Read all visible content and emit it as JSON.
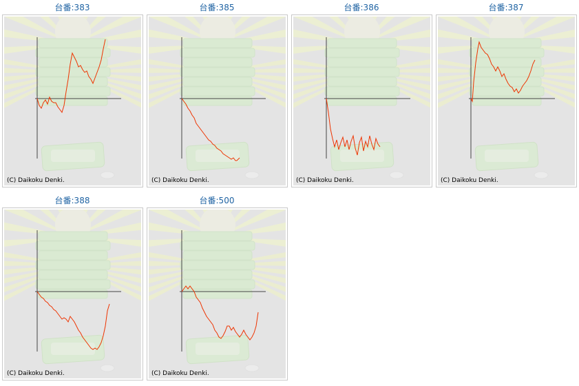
{
  "copyright": "(C) Daikoku Denki.",
  "colors": {
    "title": "#1f63a3",
    "line": "#ee3300",
    "axis": "#444444",
    "panel_bg": "#e4e4e4"
  },
  "machines": [
    {
      "title": "台番:383",
      "points": [
        [
          0,
          0
        ],
        [
          3,
          -10
        ],
        [
          6,
          -14
        ],
        [
          9,
          -6
        ],
        [
          12,
          -2
        ],
        [
          15,
          -8
        ],
        [
          18,
          2
        ],
        [
          21,
          -4
        ],
        [
          24,
          -6
        ],
        [
          27,
          -6
        ],
        [
          30,
          -12
        ],
        [
          33,
          -16
        ],
        [
          36,
          -20
        ],
        [
          39,
          -10
        ],
        [
          42,
          10
        ],
        [
          45,
          28
        ],
        [
          48,
          50
        ],
        [
          51,
          66
        ],
        [
          54,
          60
        ],
        [
          57,
          54
        ],
        [
          60,
          46
        ],
        [
          63,
          48
        ],
        [
          66,
          42
        ],
        [
          69,
          38
        ],
        [
          72,
          40
        ],
        [
          75,
          32
        ],
        [
          78,
          28
        ],
        [
          81,
          22
        ],
        [
          84,
          30
        ],
        [
          87,
          38
        ],
        [
          90,
          46
        ],
        [
          93,
          56
        ],
        [
          96,
          72
        ],
        [
          99,
          86
        ]
      ]
    },
    {
      "title": "台番:385",
      "points": [
        [
          0,
          0
        ],
        [
          3,
          -4
        ],
        [
          6,
          -8
        ],
        [
          9,
          -14
        ],
        [
          12,
          -18
        ],
        [
          15,
          -24
        ],
        [
          18,
          -28
        ],
        [
          21,
          -36
        ],
        [
          24,
          -40
        ],
        [
          27,
          -44
        ],
        [
          30,
          -48
        ],
        [
          33,
          -52
        ],
        [
          36,
          -56
        ],
        [
          39,
          -60
        ],
        [
          42,
          -62
        ],
        [
          45,
          -66
        ],
        [
          48,
          -68
        ],
        [
          51,
          -72
        ],
        [
          54,
          -74
        ],
        [
          57,
          -76
        ],
        [
          60,
          -80
        ],
        [
          63,
          -82
        ],
        [
          66,
          -84
        ],
        [
          69,
          -86
        ],
        [
          72,
          -88
        ],
        [
          75,
          -86
        ],
        [
          78,
          -90
        ],
        [
          80,
          -90
        ],
        [
          84,
          -86
        ]
      ]
    },
    {
      "title": "台番:386",
      "points": [
        [
          0,
          0
        ],
        [
          3,
          -20
        ],
        [
          6,
          -44
        ],
        [
          9,
          -58
        ],
        [
          12,
          -70
        ],
        [
          15,
          -60
        ],
        [
          18,
          -74
        ],
        [
          21,
          -64
        ],
        [
          24,
          -56
        ],
        [
          27,
          -70
        ],
        [
          30,
          -60
        ],
        [
          33,
          -74
        ],
        [
          36,
          -62
        ],
        [
          39,
          -54
        ],
        [
          42,
          -72
        ],
        [
          45,
          -82
        ],
        [
          48,
          -64
        ],
        [
          51,
          -56
        ],
        [
          54,
          -76
        ],
        [
          57,
          -62
        ],
        [
          60,
          -70
        ],
        [
          63,
          -54
        ],
        [
          66,
          -66
        ],
        [
          69,
          -74
        ],
        [
          72,
          -58
        ],
        [
          75,
          -66
        ],
        [
          78,
          -70
        ]
      ]
    },
    {
      "title": "台番:387",
      "points": [
        [
          0,
          0
        ],
        [
          2,
          -4
        ],
        [
          4,
          24
        ],
        [
          7,
          52
        ],
        [
          10,
          72
        ],
        [
          12,
          82
        ],
        [
          15,
          74
        ],
        [
          18,
          70
        ],
        [
          21,
          66
        ],
        [
          24,
          64
        ],
        [
          27,
          58
        ],
        [
          30,
          50
        ],
        [
          33,
          46
        ],
        [
          36,
          40
        ],
        [
          39,
          46
        ],
        [
          42,
          40
        ],
        [
          45,
          32
        ],
        [
          48,
          36
        ],
        [
          51,
          28
        ],
        [
          54,
          22
        ],
        [
          57,
          18
        ],
        [
          60,
          16
        ],
        [
          63,
          10
        ],
        [
          66,
          14
        ],
        [
          69,
          8
        ],
        [
          72,
          12
        ],
        [
          75,
          18
        ],
        [
          78,
          22
        ],
        [
          81,
          26
        ],
        [
          84,
          32
        ],
        [
          87,
          40
        ],
        [
          90,
          50
        ],
        [
          93,
          56
        ]
      ]
    },
    {
      "title": "台番:388",
      "points": [
        [
          0,
          0
        ],
        [
          3,
          -4
        ],
        [
          6,
          -8
        ],
        [
          9,
          -10
        ],
        [
          12,
          -14
        ],
        [
          15,
          -16
        ],
        [
          18,
          -20
        ],
        [
          21,
          -22
        ],
        [
          24,
          -26
        ],
        [
          27,
          -28
        ],
        [
          30,
          -32
        ],
        [
          33,
          -36
        ],
        [
          36,
          -40
        ],
        [
          39,
          -38
        ],
        [
          42,
          -40
        ],
        [
          45,
          -44
        ],
        [
          48,
          -36
        ],
        [
          51,
          -40
        ],
        [
          54,
          -44
        ],
        [
          57,
          -50
        ],
        [
          60,
          -56
        ],
        [
          63,
          -60
        ],
        [
          66,
          -66
        ],
        [
          69,
          -70
        ],
        [
          72,
          -74
        ],
        [
          75,
          -78
        ],
        [
          78,
          -82
        ],
        [
          81,
          -84
        ],
        [
          84,
          -82
        ],
        [
          87,
          -84
        ],
        [
          90,
          -80
        ],
        [
          93,
          -74
        ],
        [
          96,
          -64
        ],
        [
          99,
          -50
        ],
        [
          102,
          -28
        ],
        [
          105,
          -18
        ]
      ]
    },
    {
      "title": "台番:500",
      "points": [
        [
          0,
          0
        ],
        [
          3,
          4
        ],
        [
          6,
          8
        ],
        [
          9,
          4
        ],
        [
          12,
          8
        ],
        [
          15,
          4
        ],
        [
          18,
          0
        ],
        [
          21,
          -8
        ],
        [
          24,
          -12
        ],
        [
          27,
          -16
        ],
        [
          30,
          -24
        ],
        [
          33,
          -30
        ],
        [
          36,
          -36
        ],
        [
          39,
          -40
        ],
        [
          42,
          -44
        ],
        [
          45,
          -48
        ],
        [
          48,
          -56
        ],
        [
          51,
          -60
        ],
        [
          54,
          -66
        ],
        [
          57,
          -68
        ],
        [
          60,
          -64
        ],
        [
          63,
          -58
        ],
        [
          66,
          -50
        ],
        [
          69,
          -50
        ],
        [
          72,
          -56
        ],
        [
          75,
          -52
        ],
        [
          78,
          -58
        ],
        [
          81,
          -62
        ],
        [
          84,
          -66
        ],
        [
          87,
          -62
        ],
        [
          90,
          -56
        ],
        [
          93,
          -62
        ],
        [
          96,
          -66
        ],
        [
          99,
          -70
        ],
        [
          102,
          -66
        ],
        [
          105,
          -60
        ],
        [
          108,
          -50
        ],
        [
          111,
          -30
        ]
      ]
    }
  ]
}
